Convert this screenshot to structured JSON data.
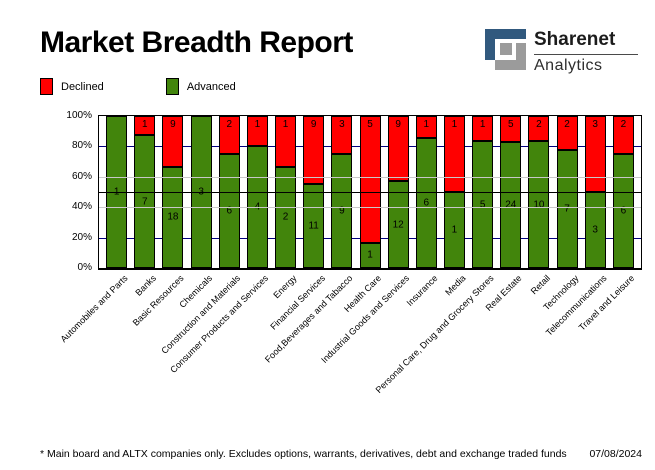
{
  "header": {
    "title": "Market Breadth Report",
    "logo": {
      "line1": "Sharenet",
      "line2": "Analytics",
      "blue": "#31597e",
      "gray": "#9b9b9b"
    }
  },
  "legend": [
    {
      "label": "Declined",
      "color": "#ff0000"
    },
    {
      "label": "Advanced",
      "color": "#42850c"
    }
  ],
  "chart_data": {
    "type": "bar",
    "stacked": true,
    "percent_of_total": true,
    "categories": [
      "Automobiles and Parts",
      "Banks",
      "Basic Resources",
      "Chemicals",
      "Construction and Materials",
      "Consumer Products and Services",
      "Energy",
      "Financial Services",
      "Food,Beverages and Tabacco",
      "Health Care",
      "Industrial Goods and Services",
      "Insurance",
      "Media",
      "Personal Care, Drug and Grocery Stores",
      "Real Estate",
      "Retail",
      "Technology",
      "Telecommunications",
      "Travel and Leisure"
    ],
    "series": [
      {
        "name": "Declined",
        "color": "#ff0000",
        "values": [
          0,
          1,
          9,
          0,
          2,
          1,
          1,
          9,
          3,
          5,
          9,
          1,
          1,
          1,
          5,
          2,
          2,
          3,
          2
        ]
      },
      {
        "name": "Advanced",
        "color": "#42850c",
        "values": [
          1,
          7,
          18,
          3,
          6,
          4,
          2,
          11,
          9,
          1,
          12,
          6,
          1,
          5,
          24,
          10,
          7,
          3,
          6
        ]
      }
    ],
    "ylabel": "",
    "xlabel": "",
    "ylim": [
      0,
      100
    ],
    "y_ticks": [
      "0%",
      "20%",
      "40%",
      "60%",
      "80%",
      "100%"
    ],
    "reference_line_percent": 50,
    "gridlines": {
      "navy_percents": [
        20,
        80
      ],
      "navy_color": "#000080",
      "gray_percents": [
        40,
        60
      ],
      "gray_color": "#c8c8c8",
      "reference_color": "#000000"
    },
    "legend_position": "top-left",
    "bar_border_color": "#000000"
  },
  "footer": {
    "note": "* Main board and ALTX companies only. Excludes options, warrants, derivatives, debt and exchange traded funds",
    "date": "07/08/2024"
  }
}
